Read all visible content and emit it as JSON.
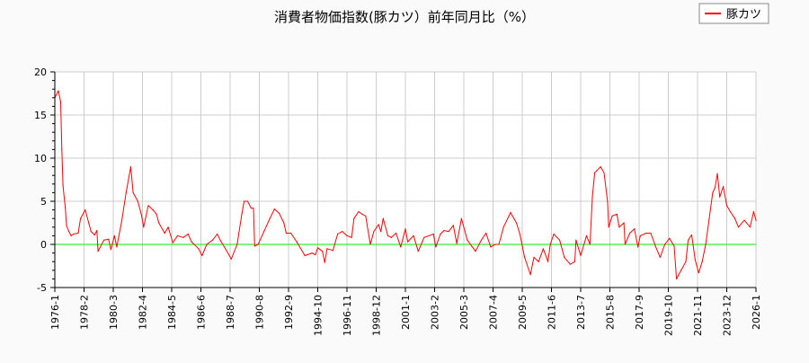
{
  "chart_data": {
    "type": "line",
    "title": "消費者物価指数(豚カツ）前年同月比（%）",
    "xlabel": "",
    "ylabel": "",
    "ylim": [
      -5,
      20
    ],
    "xlim": [
      "1976-1",
      "2026-1"
    ],
    "yticks": [
      "20",
      "15",
      "10",
      "5",
      "0",
      "-5"
    ],
    "xticks": [
      "1976-1",
      "1978-2",
      "1980-3",
      "1982-4",
      "1984-5",
      "1986-6",
      "1988-7",
      "1990-8",
      "1992-9",
      "1994-10",
      "1996-11",
      "1998-12",
      "2001-1",
      "2003-2",
      "2005-3",
      "2007-4",
      "2009-5",
      "2011-6",
      "2013-7",
      "2015-8",
      "2017-9",
      "2019-10",
      "2021-11",
      "2023-12",
      "2026-1"
    ],
    "grid": true,
    "legend": {
      "position": "top-right",
      "entries": [
        "豚カツ"
      ]
    },
    "reference_line": {
      "y": 0,
      "color": "#00ee00"
    },
    "series": [
      {
        "name": "豚カツ",
        "color": "#ff0000",
        "points": [
          [
            "1976-1",
            17.0
          ],
          [
            "1976-4",
            17.8
          ],
          [
            "1976-6",
            16.5
          ],
          [
            "1976-7",
            11.0
          ],
          [
            "1976-8",
            6.8
          ],
          [
            "1976-10",
            4.2
          ],
          [
            "1976-11",
            2.2
          ],
          [
            "1977-1",
            1.5
          ],
          [
            "1977-3",
            1.0
          ],
          [
            "1977-5",
            1.2
          ],
          [
            "1977-9",
            1.3
          ],
          [
            "1977-11",
            3.0
          ],
          [
            "1978-3",
            4.0
          ],
          [
            "1978-6",
            2.5
          ],
          [
            "1978-8",
            1.5
          ],
          [
            "1978-11",
            1.1
          ],
          [
            "1979-1",
            1.6
          ],
          [
            "1979-2",
            -0.8
          ],
          [
            "1979-7",
            0.5
          ],
          [
            "1979-11",
            0.6
          ],
          [
            "1980-1",
            -0.6
          ],
          [
            "1980-4",
            1.0
          ],
          [
            "1980-6",
            -0.3
          ],
          [
            "1980-10",
            2.5
          ],
          [
            "1981-2",
            6.0
          ],
          [
            "1981-6",
            9.0
          ],
          [
            "1981-8",
            6.0
          ],
          [
            "1981-12",
            5.0
          ],
          [
            "1982-3",
            3.5
          ],
          [
            "1982-5",
            2.0
          ],
          [
            "1982-9",
            4.5
          ],
          [
            "1983-1",
            4.0
          ],
          [
            "1983-4",
            3.5
          ],
          [
            "1983-6",
            2.5
          ],
          [
            "1983-11",
            1.3
          ],
          [
            "1984-2",
            2.0
          ],
          [
            "1984-6",
            0.2
          ],
          [
            "1984-10",
            1.0
          ],
          [
            "1985-3",
            0.8
          ],
          [
            "1985-7",
            1.2
          ],
          [
            "1985-10",
            0.3
          ],
          [
            "1986-4",
            -0.5
          ],
          [
            "1986-7",
            -1.3
          ],
          [
            "1986-11",
            0.0
          ],
          [
            "1987-4",
            0.5
          ],
          [
            "1987-8",
            1.2
          ],
          [
            "1987-11",
            0.4
          ],
          [
            "1988-3",
            -0.5
          ],
          [
            "1988-8",
            -1.7
          ],
          [
            "1989-1",
            0.0
          ],
          [
            "1989-5",
            3.5
          ],
          [
            "1989-7",
            5.0
          ],
          [
            "1989-10",
            5.0
          ],
          [
            "1990-1",
            4.2
          ],
          [
            "1990-3",
            4.2
          ],
          [
            "1990-4",
            -0.2
          ],
          [
            "1990-7",
            0.0
          ],
          [
            "1990-12",
            1.5
          ],
          [
            "1991-5",
            3.0
          ],
          [
            "1991-9",
            4.1
          ],
          [
            "1992-1",
            3.6
          ],
          [
            "1992-5",
            2.5
          ],
          [
            "1992-7",
            1.3
          ],
          [
            "1992-11",
            1.3
          ],
          [
            "1993-4",
            0.3
          ],
          [
            "1993-11",
            -1.3
          ],
          [
            "1994-5",
            -1.0
          ],
          [
            "1994-8",
            -1.2
          ],
          [
            "1994-10",
            -0.4
          ],
          [
            "1995-2",
            -0.8
          ],
          [
            "1995-4",
            -2.1
          ],
          [
            "1995-6",
            -0.5
          ],
          [
            "1995-11",
            -0.7
          ],
          [
            "1996-3",
            1.2
          ],
          [
            "1996-7",
            1.5
          ],
          [
            "1996-11",
            1.0
          ],
          [
            "1997-3",
            0.8
          ],
          [
            "1997-5",
            3.0
          ],
          [
            "1997-9",
            3.8
          ],
          [
            "1997-12",
            3.5
          ],
          [
            "1998-3",
            3.3
          ],
          [
            "1998-7",
            0.0
          ],
          [
            "1998-10",
            1.5
          ],
          [
            "1999-2",
            2.3
          ],
          [
            "1999-4",
            1.5
          ],
          [
            "1999-6",
            3.0
          ],
          [
            "1999-10",
            1.0
          ],
          [
            "2000-1",
            0.8
          ],
          [
            "2000-5",
            1.3
          ],
          [
            "2000-9",
            -0.3
          ],
          [
            "2001-1",
            1.8
          ],
          [
            "2001-3",
            0.3
          ],
          [
            "2001-8",
            1.0
          ],
          [
            "2001-12",
            -0.8
          ],
          [
            "2002-5",
            0.8
          ],
          [
            "2003-1",
            1.2
          ],
          [
            "2003-3",
            -0.3
          ],
          [
            "2003-7",
            1.2
          ],
          [
            "2003-10",
            1.6
          ],
          [
            "2004-2",
            1.5
          ],
          [
            "2004-6",
            2.2
          ],
          [
            "2004-9",
            0.1
          ],
          [
            "2005-1",
            3.0
          ],
          [
            "2005-6",
            0.5
          ],
          [
            "2006-1",
            -0.8
          ],
          [
            "2006-6",
            0.5
          ],
          [
            "2006-10",
            1.3
          ],
          [
            "2007-2",
            -0.3
          ],
          [
            "2007-6",
            0.0
          ],
          [
            "2007-9",
            0.0
          ],
          [
            "2008-1",
            2.0
          ],
          [
            "2008-7",
            3.7
          ],
          [
            "2008-12",
            2.5
          ],
          [
            "2009-3",
            1.2
          ],
          [
            "2009-7",
            -1.5
          ],
          [
            "2009-12",
            -3.5
          ],
          [
            "2010-3",
            -1.5
          ],
          [
            "2010-7",
            -2.0
          ],
          [
            "2010-11",
            -0.5
          ],
          [
            "2011-3",
            -2.0
          ],
          [
            "2011-5",
            0.0
          ],
          [
            "2011-8",
            1.2
          ],
          [
            "2012-1",
            0.5
          ],
          [
            "2012-5",
            -1.5
          ],
          [
            "2012-10",
            -2.3
          ],
          [
            "2013-2",
            -2.0
          ],
          [
            "2013-3",
            0.5
          ],
          [
            "2013-7",
            -1.3
          ],
          [
            "2013-12",
            1.0
          ],
          [
            "2014-3",
            0.0
          ],
          [
            "2014-5",
            5.5
          ],
          [
            "2014-7",
            8.3
          ],
          [
            "2014-12",
            9.0
          ],
          [
            "2015-3",
            8.3
          ],
          [
            "2015-6",
            5.0
          ],
          [
            "2015-7",
            2.0
          ],
          [
            "2015-10",
            3.3
          ],
          [
            "2016-2",
            3.5
          ],
          [
            "2016-4",
            2.0
          ],
          [
            "2016-8",
            2.5
          ],
          [
            "2016-9",
            0.0
          ],
          [
            "2017-1",
            1.3
          ],
          [
            "2017-5",
            1.8
          ],
          [
            "2017-8",
            -0.3
          ],
          [
            "2017-10",
            1.0
          ],
          [
            "2018-3",
            1.3
          ],
          [
            "2018-7",
            1.3
          ],
          [
            "2018-11",
            -0.2
          ],
          [
            "2019-3",
            -1.5
          ],
          [
            "2019-7",
            0.0
          ],
          [
            "2019-11",
            0.7
          ],
          [
            "2020-3",
            -0.2
          ],
          [
            "2020-5",
            -4.0
          ],
          [
            "2020-9",
            -3.0
          ],
          [
            "2021-1",
            -2.0
          ],
          [
            "2021-3",
            0.5
          ],
          [
            "2021-6",
            1.1
          ],
          [
            "2021-9",
            -1.8
          ],
          [
            "2021-12",
            -3.3
          ],
          [
            "2022-3",
            -2.0
          ],
          [
            "2022-6",
            0.0
          ],
          [
            "2022-9",
            3.0
          ],
          [
            "2022-12",
            6.0
          ],
          [
            "2023-2",
            6.6
          ],
          [
            "2023-4",
            8.2
          ],
          [
            "2023-6",
            5.5
          ],
          [
            "2023-9",
            6.7
          ],
          [
            "2023-12",
            4.5
          ],
          [
            "2024-3",
            3.8
          ],
          [
            "2024-7",
            3.0
          ],
          [
            "2024-10",
            2.0
          ],
          [
            "2025-3",
            2.8
          ],
          [
            "2025-8",
            2.0
          ],
          [
            "2025-11",
            3.8
          ],
          [
            "2026-1",
            2.8
          ]
        ]
      }
    ]
  }
}
